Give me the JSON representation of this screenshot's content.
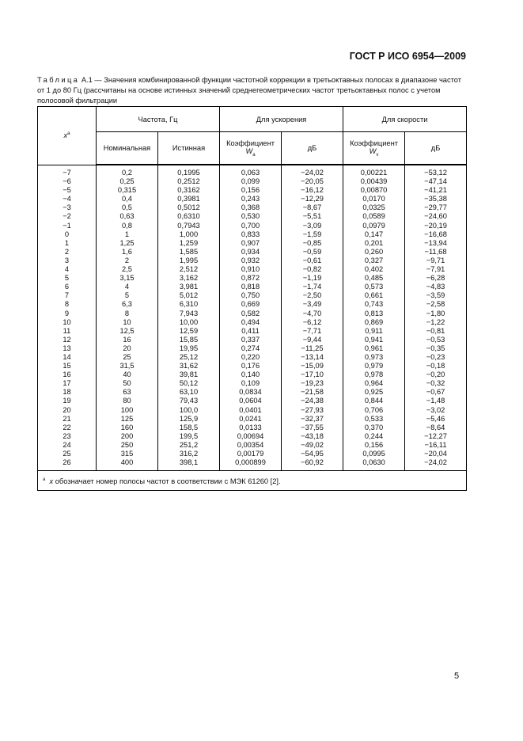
{
  "header": {
    "doc_id": "ГОСТ Р ИСО 6954—2009"
  },
  "caption": {
    "label": "Таблица",
    "text": " А.1 — Значения комбинированной функции частотной коррекции в третьоктавных полосах в диапазоне частот от 1 до 80 Гц (рассчитаны на основе истинных значений среднегеометрических частот третьоктавных полос с учетом полосовой фильтрации"
  },
  "table": {
    "col_x": "x",
    "col_x_mark": "a",
    "group_freq": "Частота, Гц",
    "group_accel": "Для ускорения",
    "group_vel": "Для скорости",
    "nominal": "Номинальная",
    "true": "Истинная",
    "coef": "Коэффициент",
    "w": "W",
    "wa_sub": "a",
    "wv_sub": "v",
    "db": "дБ",
    "rows": [
      [
        "−7",
        "0,2",
        "0,1995",
        "0,063",
        "−24,02",
        "0,00221",
        "−53,12"
      ],
      [
        "−6",
        "0,25",
        "0,2512",
        "0,099",
        "−20,05",
        "0,00439",
        "−47,14"
      ],
      [
        "−5",
        "0,315",
        "0,3162",
        "0,156",
        "−16,12",
        "0,00870",
        "−41,21"
      ],
      [
        "−4",
        "0,4",
        "0,3981",
        "0,243",
        "−12,29",
        "0,0170",
        "−35,38"
      ],
      [
        "−3",
        "0,5",
        "0,5012",
        "0,368",
        "−8,67",
        "0,0325",
        "−29,77"
      ],
      [
        "−2",
        "0,63",
        "0,6310",
        "0,530",
        "−5,51",
        "0,0589",
        "−24,60"
      ],
      [
        "−1",
        "0,8",
        "0,7943",
        "0,700",
        "−3,09",
        "0,0979",
        "−20,19"
      ],
      [
        "0",
        "1",
        "1,000",
        "0,833",
        "−1,59",
        "0,147",
        "−16,68"
      ],
      [
        "1",
        "1,25",
        "1,259",
        "0,907",
        "−0,85",
        "0,201",
        "−13,94"
      ],
      [
        "2",
        "1,6",
        "1,585",
        "0,934",
        "−0,59",
        "0,260",
        "−11,68"
      ],
      [
        "3",
        "2",
        "1,995",
        "0,932",
        "−0,61",
        "0,327",
        "−9,71"
      ],
      [
        "4",
        "2,5",
        "2,512",
        "0,910",
        "−0,82",
        "0,402",
        "−7,91"
      ],
      [
        "5",
        "3,15",
        "3,162",
        "0,872",
        "−1,19",
        "0,485",
        "−6,28"
      ],
      [
        "6",
        "4",
        "3,981",
        "0,818",
        "−1,74",
        "0,573",
        "−4,83"
      ],
      [
        "7",
        "5",
        "5,012",
        "0,750",
        "−2,50",
        "0,661",
        "−3,59"
      ],
      [
        "8",
        "6,3",
        "6,310",
        "0,669",
        "−3,49",
        "0,743",
        "−2,58"
      ],
      [
        "9",
        "8",
        "7,943",
        "0,582",
        "−4,70",
        "0,813",
        "−1,80"
      ],
      [
        "10",
        "10",
        "10,00",
        "0,494",
        "−6,12",
        "0,869",
        "−1,22"
      ],
      [
        "11",
        "12,5",
        "12,59",
        "0,411",
        "−7,71",
        "0,911",
        "−0,81"
      ],
      [
        "12",
        "16",
        "15,85",
        "0,337",
        "−9,44",
        "0,941",
        "−0,53"
      ],
      [
        "13",
        "20",
        "19,95",
        "0,274",
        "−11,25",
        "0,961",
        "−0,35"
      ],
      [
        "14",
        "25",
        "25,12",
        "0,220",
        "−13,14",
        "0,973",
        "−0,23"
      ],
      [
        "15",
        "31,5",
        "31,62",
        "0,176",
        "−15,09",
        "0,979",
        "−0,18"
      ],
      [
        "16",
        "40",
        "39,81",
        "0,140",
        "−17,10",
        "0,978",
        "−0,20"
      ],
      [
        "17",
        "50",
        "50,12",
        "0,109",
        "−19,23",
        "0,964",
        "−0,32"
      ],
      [
        "18",
        "63",
        "63,10",
        "0,0834",
        "−21,58",
        "0,925",
        "−0,67"
      ],
      [
        "19",
        "80",
        "79,43",
        "0,0604",
        "−24,38",
        "0,844",
        "−1,48"
      ],
      [
        "20",
        "100",
        "100,0",
        "0,0401",
        "−27,93",
        "0,706",
        "−3,02"
      ],
      [
        "21",
        "125",
        "125,9",
        "0,0241",
        "−32,37",
        "0,533",
        "−5,46"
      ],
      [
        "22",
        "160",
        "158,5",
        "0,0133",
        "−37,55",
        "0,370",
        "−8,64"
      ],
      [
        "23",
        "200",
        "199,5",
        "0,00694",
        "−43,18",
        "0,244",
        "−12,27"
      ],
      [
        "24",
        "250",
        "251,2",
        "0,00354",
        "−49,02",
        "0,156",
        "−16,11"
      ],
      [
        "25",
        "315",
        "316,2",
        "0,00179",
        "−54,95",
        "0,0995",
        "−20,04"
      ],
      [
        "26",
        "400",
        "398,1",
        "0,000899",
        "−60,92",
        "0,0630",
        "−24,02"
      ]
    ],
    "footnote_mark": "a",
    "footnote_var": "x",
    "footnote_text": " обозначает номер полосы частот в соответствии с МЭК 61260 [2]."
  },
  "page_number": "5"
}
